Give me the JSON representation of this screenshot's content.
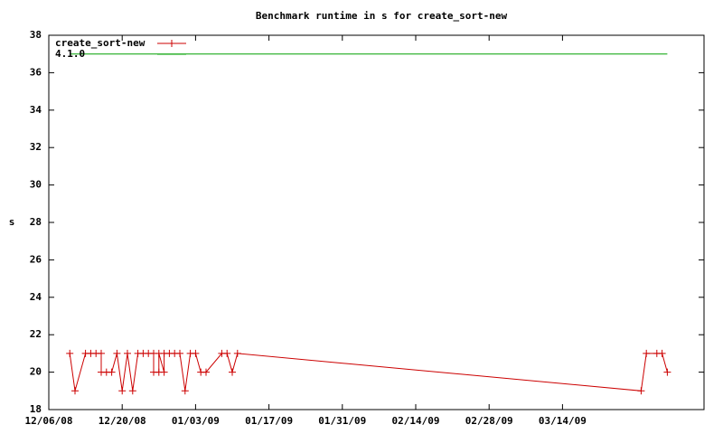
{
  "chart_data": {
    "type": "line",
    "title": "Benchmark runtime in s for create_sort-new",
    "y_label": "s",
    "legend_position": "top-left",
    "xlim": [
      "12/06/08",
      "04/10/09"
    ],
    "xticks": [
      "12/06/08",
      "12/20/08",
      "01/03/09",
      "01/17/09",
      "01/31/09",
      "02/14/09",
      "02/28/09",
      "03/14/09"
    ],
    "ylim": [
      18,
      38
    ],
    "yticks": [
      18,
      20,
      22,
      24,
      26,
      28,
      30,
      32,
      34,
      36,
      38
    ],
    "series": [
      {
        "name": "create_sort-new",
        "color": "#cc0000",
        "markers": true,
        "x": [
          "12/10/08",
          "12/11/08",
          "12/13/08",
          "12/14/08",
          "12/15/08",
          "12/16/08",
          "12/16/08",
          "12/17/08",
          "12/18/08",
          "12/19/08",
          "12/20/08",
          "12/21/08",
          "12/22/08",
          "12/23/08",
          "12/24/08",
          "12/25/08",
          "12/26/08",
          "12/26/08",
          "12/27/08",
          "12/27/08",
          "12/28/08",
          "12/28/08",
          "12/29/08",
          "12/30/08",
          "12/31/08",
          "01/01/09",
          "01/02/09",
          "01/03/09",
          "01/04/09",
          "01/05/09",
          "01/08/09",
          "01/09/09",
          "01/10/09",
          "01/11/09",
          "03/29/09",
          "03/30/09",
          "04/01/09",
          "04/02/09",
          "04/03/09"
        ],
        "values": [
          21,
          19,
          21,
          21,
          21,
          21,
          20,
          20,
          20,
          21,
          19,
          21,
          19,
          21,
          21,
          21,
          21,
          20,
          20,
          21,
          20,
          21,
          21,
          21,
          21,
          19,
          21,
          21,
          20,
          20,
          21,
          21,
          20,
          21,
          19,
          21,
          21,
          21,
          20
        ]
      },
      {
        "name": "4.1.0",
        "color": "#00a000",
        "markers": false,
        "x": [
          "12/10/08",
          "04/03/09"
        ],
        "values": [
          37,
          37
        ]
      }
    ]
  }
}
